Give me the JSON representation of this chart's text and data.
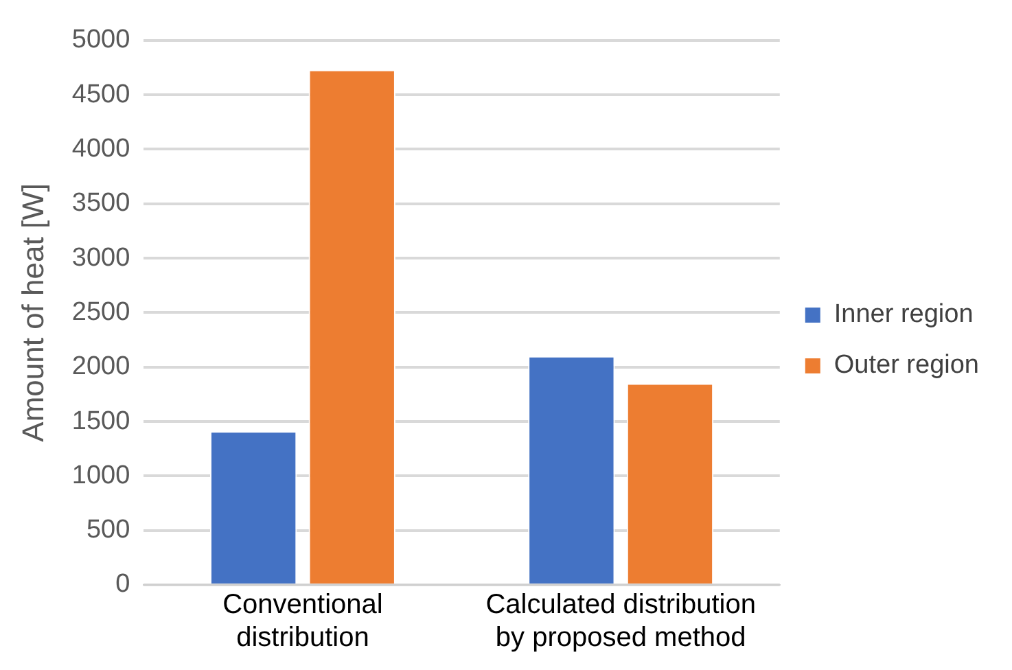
{
  "chart_data": {
    "type": "bar",
    "ylabel": "Amount of heat [W]",
    "categories": [
      "Conventional distribution",
      "Calculated distribution by proposed method"
    ],
    "series": [
      {
        "name": "Inner region",
        "color": "#4472c4",
        "values": [
          1410,
          2100
        ]
      },
      {
        "name": "Outer region",
        "color": "#ed7d31",
        "values": [
          4730,
          1850
        ]
      }
    ],
    "ylim": [
      0,
      5000
    ],
    "yticks": [
      0,
      500,
      1000,
      1500,
      2000,
      2500,
      3000,
      3500,
      4000,
      4500,
      5000
    ],
    "grid": "y",
    "legend": "right"
  }
}
